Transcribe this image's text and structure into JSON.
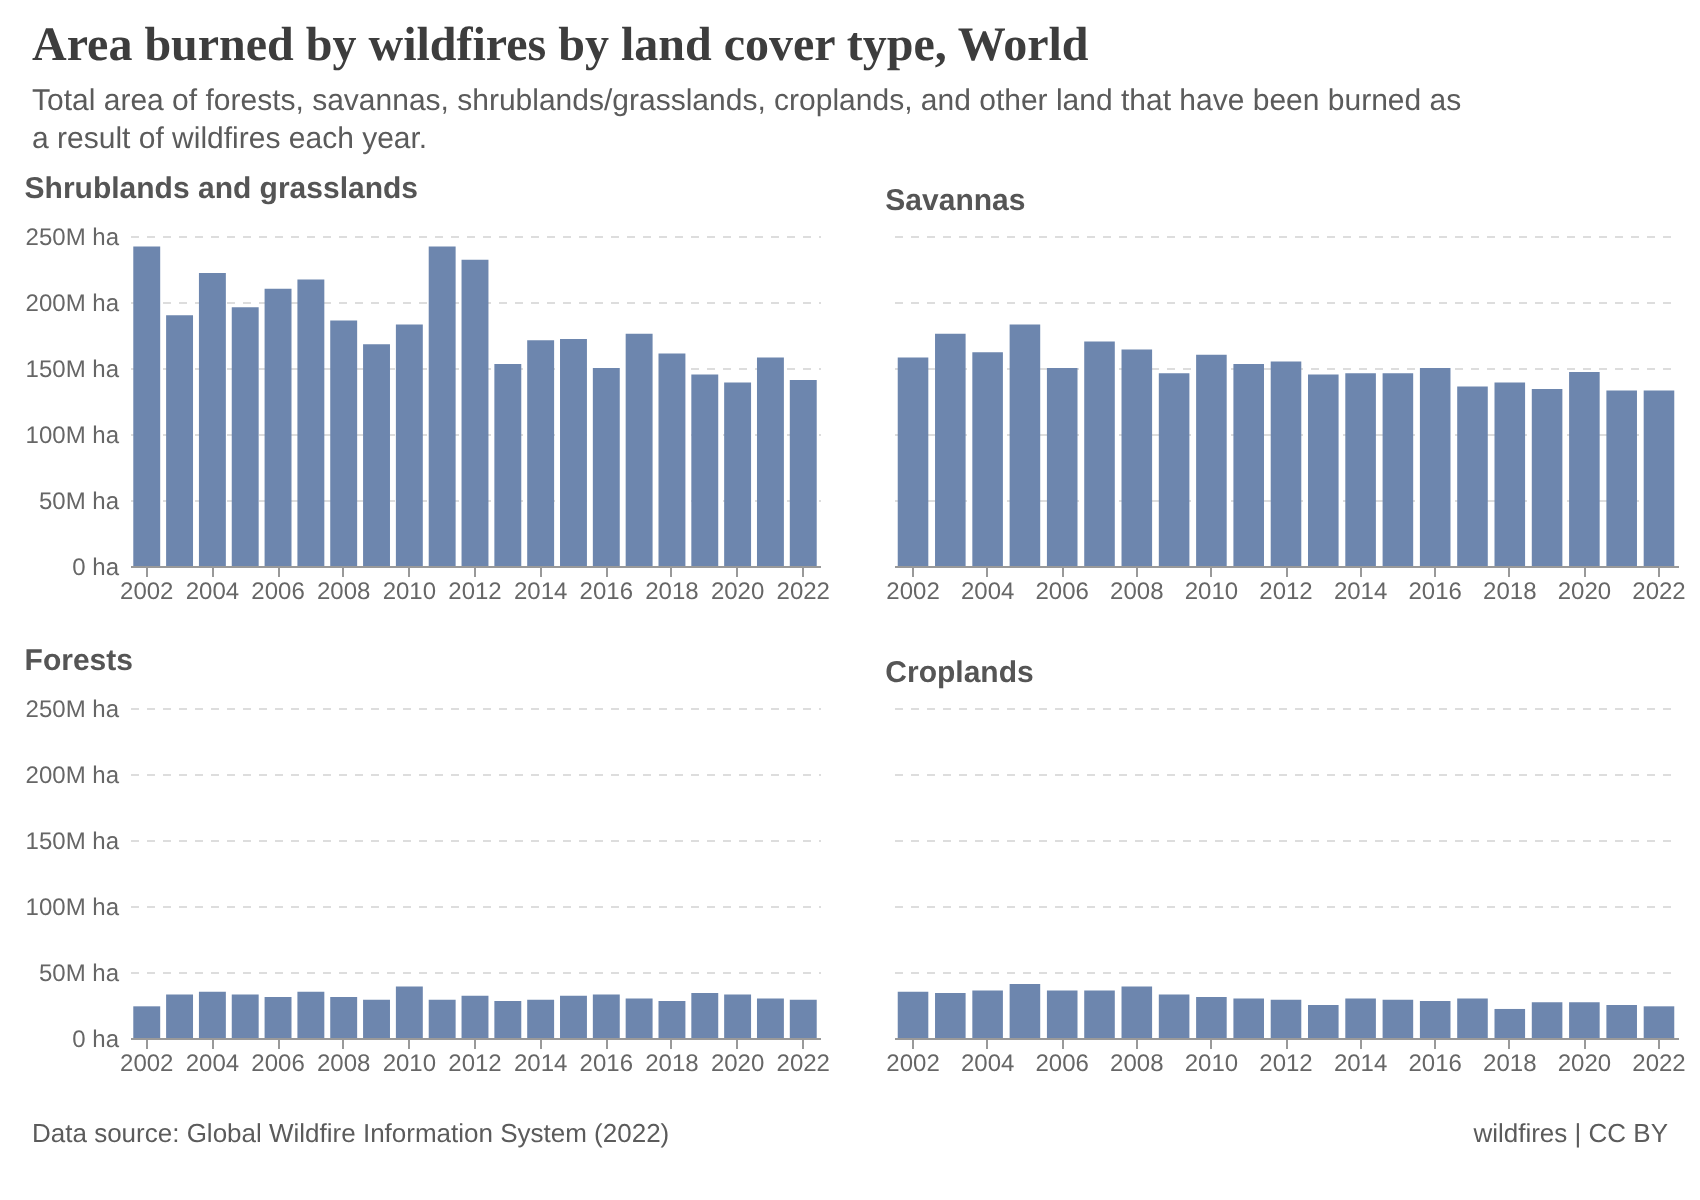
{
  "chart_data": [
    {
      "type": "other",
      "title": "Area burned by wildfires by land cover type, World",
      "subtitle": "Total area of forests, savannas, shrublands/grasslands, croplands, and other land that have been burned as a result of wildfires each year.",
      "annotations": [
        "Data source: Global Wildfire Information System (2022)",
        "wildfires | CC BY"
      ]
    },
    {
      "type": "bar",
      "title": "Shrublands and grasslands",
      "color": "#6d86ae",
      "grid": "y",
      "categories": [
        "2002",
        null,
        "2004",
        null,
        "2006",
        null,
        "2008",
        null,
        "2010",
        null,
        "2012",
        null,
        "2014",
        null,
        "2016",
        null,
        "2018",
        null,
        "2020",
        null,
        "2022"
      ],
      "values": [
        242,
        190,
        222,
        196,
        210,
        217,
        186,
        168,
        183,
        242,
        232,
        153,
        171,
        172,
        150,
        176,
        161,
        145,
        139,
        158,
        141
      ],
      "ylim": [
        0,
        250
      ],
      "yticks": [
        {
          "value": 0,
          "label": "0 ha"
        },
        {
          "value": 50,
          "label": "50M ha"
        },
        {
          "value": 100,
          "label": "100M ha"
        },
        {
          "value": 150,
          "label": "150M ha"
        },
        {
          "value": 200,
          "label": "200M ha"
        },
        {
          "value": 250,
          "label": "250M ha"
        }
      ]
    },
    {
      "type": "bar",
      "title": "Savannas",
      "color": "#6d86ae",
      "grid": "y",
      "tick_labels": "x",
      "categories": [
        "2002",
        null,
        "2004",
        null,
        "2006",
        null,
        "2008",
        null,
        "2010",
        null,
        "2012",
        null,
        "2014",
        null,
        "2016",
        null,
        "2018",
        null,
        "2020",
        null,
        "2022"
      ],
      "values": [
        158,
        176,
        162,
        183,
        150,
        170,
        164,
        146,
        160,
        153,
        155,
        145,
        146,
        146,
        150,
        136,
        139,
        134,
        147,
        133,
        133
      ],
      "ylim": [
        0,
        250
      ],
      "yticks": [
        {
          "value": 0,
          "label": null
        },
        {
          "value": 50,
          "label": null
        },
        {
          "value": 100,
          "label": null
        },
        {
          "value": 150,
          "label": null
        },
        {
          "value": 200,
          "label": null
        },
        {
          "value": 250,
          "label": null
        }
      ]
    },
    {
      "type": "bar",
      "title": "Forests",
      "color": "#6d86ae",
      "grid": "y",
      "categories": [
        "2002",
        null,
        "2004",
        null,
        "2006",
        null,
        "2008",
        null,
        "2010",
        null,
        "2012",
        null,
        "2014",
        null,
        "2016",
        null,
        "2018",
        null,
        "2020",
        null,
        "2022"
      ],
      "values": [
        24,
        33,
        35,
        33,
        31,
        35,
        31,
        29,
        39,
        29,
        32,
        28,
        29,
        32,
        33,
        30,
        28,
        34,
        33,
        30,
        29
      ],
      "ylim": [
        0,
        250
      ],
      "yticks": [
        {
          "value": 0,
          "label": "0 ha"
        },
        {
          "value": 50,
          "label": "50M ha"
        },
        {
          "value": 100,
          "label": "100M ha"
        },
        {
          "value": 150,
          "label": "150M ha"
        },
        {
          "value": 200,
          "label": "200M ha"
        },
        {
          "value": 250,
          "label": "250M ha"
        }
      ]
    },
    {
      "type": "bar",
      "title": "Croplands",
      "color": "#6d86ae",
      "grid": "y",
      "tick_labels": "x",
      "categories": [
        "2002",
        null,
        "2004",
        null,
        "2006",
        null,
        "2008",
        null,
        "2010",
        null,
        "2012",
        null,
        "2014",
        null,
        "2016",
        null,
        "2018",
        null,
        "2020",
        null,
        "2022"
      ],
      "values": [
        35,
        34,
        36,
        41,
        36,
        36,
        39,
        33,
        31,
        30,
        29,
        25,
        30,
        29,
        28,
        30,
        22,
        27,
        27,
        25,
        24
      ],
      "ylim": [
        0,
        250
      ],
      "yticks": [
        {
          "value": 0,
          "label": null
        },
        {
          "value": 50,
          "label": null
        },
        {
          "value": 100,
          "label": null
        },
        {
          "value": 150,
          "label": null
        },
        {
          "value": 200,
          "label": null
        },
        {
          "value": 250,
          "label": null
        }
      ]
    }
  ]
}
